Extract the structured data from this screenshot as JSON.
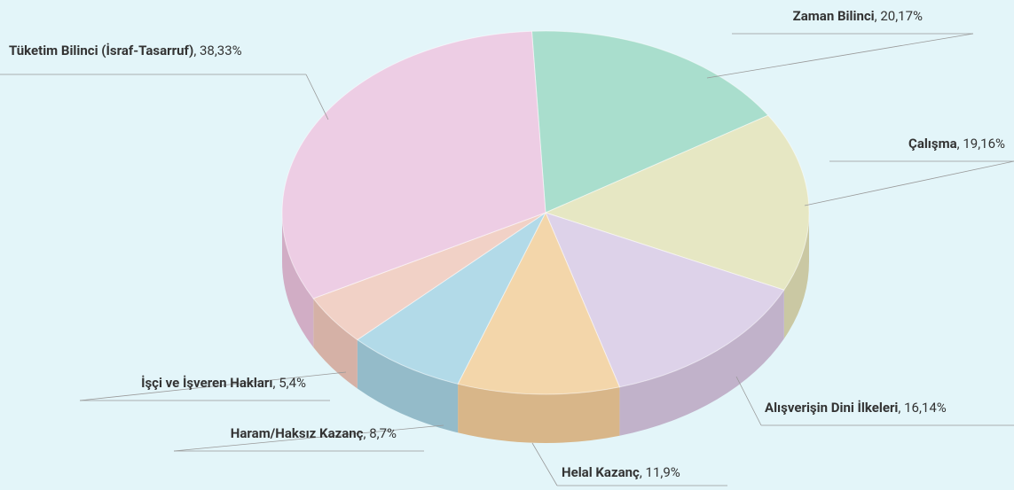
{
  "chart_data": {
    "type": "pie",
    "categories": [
      "Zaman Bilinci",
      "Çalışma",
      "Alışverişin Dini İlkeleri",
      "Helal Kazanç",
      "Haram/Haksız Kazanç",
      "İşçi ve İşveren Hakları",
      "Tüketim Bilinci (İsraf-Tasarruf)"
    ],
    "values": [
      20.17,
      19.16,
      16.14,
      11.9,
      8.7,
      5.4,
      38.33
    ],
    "value_labels": [
      "20,17%",
      "19,16%",
      "16,14%",
      "11,9%",
      "8,7%",
      "5,4%",
      "38,33%"
    ],
    "colors": [
      "#9fd9c5",
      "#e6e4ba",
      "#dccbe6",
      "#f6d09c",
      "#a9d5e5",
      "#f3cabd",
      "#eec5e1"
    ]
  }
}
